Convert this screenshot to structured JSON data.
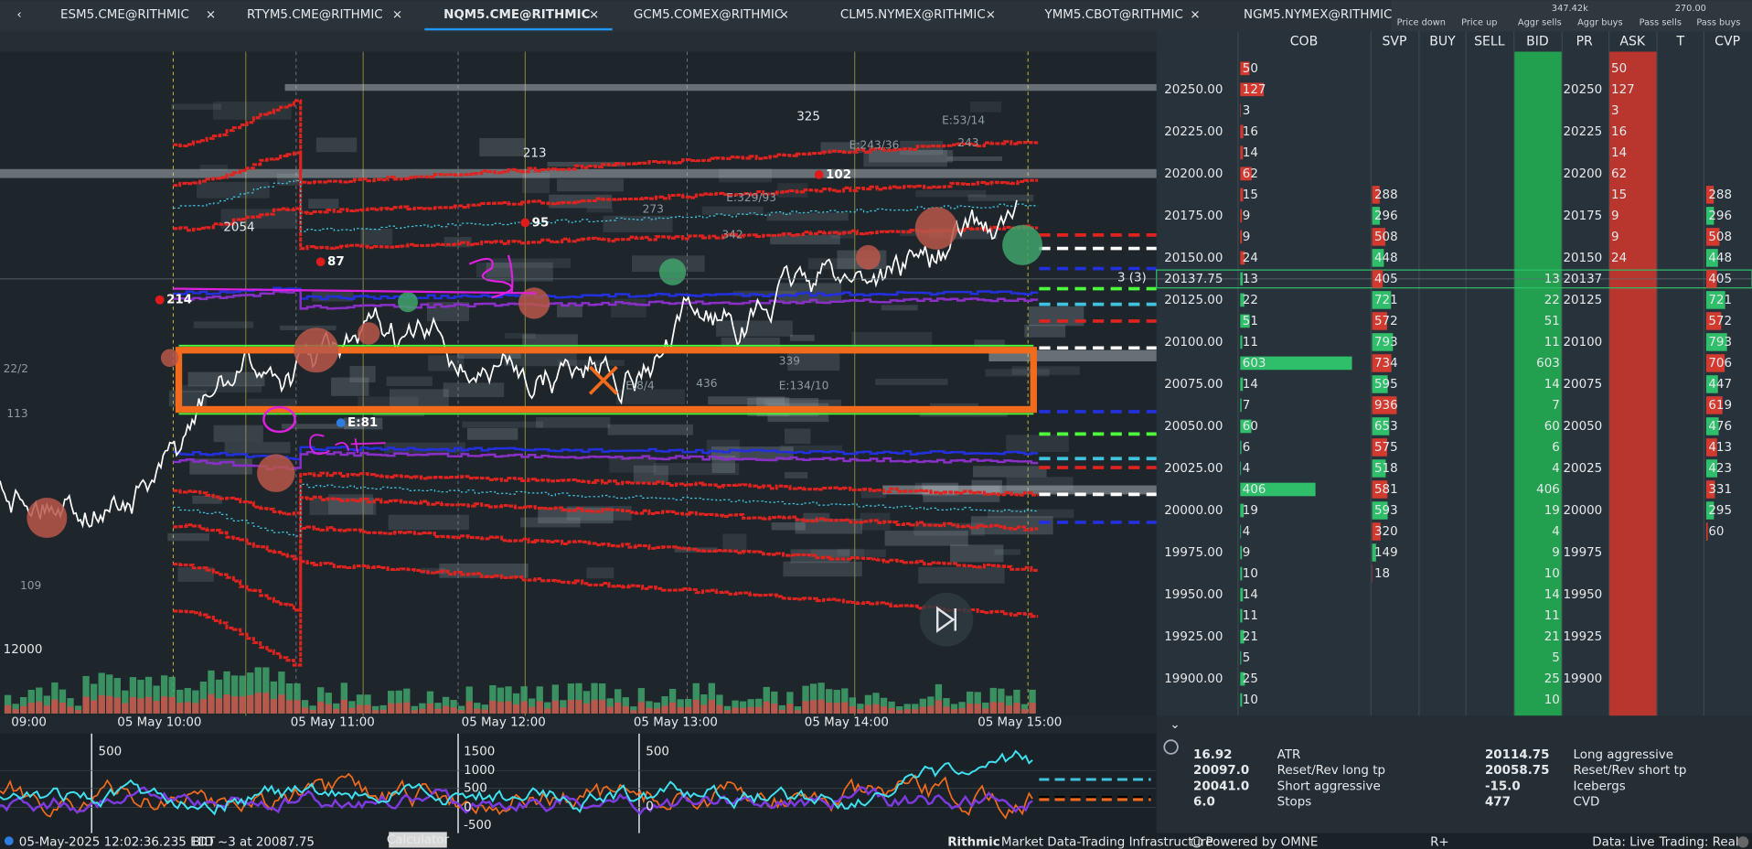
{
  "tabs": {
    "items": [
      "ESM5.CME@RITHMIC",
      "RTYM5.CME@RITHMIC",
      "NQM5.CME@RITHMIC",
      "GCM5.COMEX@RITHMIC",
      "CLM5.NYMEX@RITHMIC",
      "YMM5.CBOT@RITHMIC",
      "NGM5.NYMEX@RITHMIC"
    ],
    "active": 2
  },
  "toolbar": {
    "price_down": "Price down",
    "price_up": "Price up",
    "aggr_value": "347.42k",
    "aggr_sells": "Aggr sells",
    "aggr_buys": "Aggr buys",
    "pass_value": "270.00",
    "pass_sells": "Pass sells",
    "pass_buys": "Pass buys"
  },
  "ladder": {
    "columns": [
      "COB",
      "SVP",
      "BUY",
      "SELL",
      "BID",
      "PR",
      "ASK",
      "T",
      "CVP"
    ],
    "current_row": 10,
    "rows": [
      {
        "price": null,
        "pr": null,
        "cob": 50,
        "bid": null,
        "ask": 50,
        "svp": null,
        "cvp": null
      },
      {
        "price": "20250.00",
        "pr": "20250",
        "cob": 127,
        "bid": null,
        "ask": 127,
        "svp": null,
        "cvp": null
      },
      {
        "price": null,
        "pr": null,
        "cob": 3,
        "bid": null,
        "ask": 3,
        "svp": null,
        "cvp": null
      },
      {
        "price": "20225.00",
        "pr": "20225",
        "cob": 16,
        "bid": null,
        "ask": 16,
        "svp": null,
        "cvp": null
      },
      {
        "price": null,
        "pr": null,
        "cob": 14,
        "bid": null,
        "ask": 14,
        "svp": null,
        "cvp": null
      },
      {
        "price": "20200.00",
        "pr": "20200",
        "cob": 62,
        "bid": null,
        "ask": 62,
        "svp": null,
        "cvp": null
      },
      {
        "price": null,
        "pr": null,
        "cob": 15,
        "bid": null,
        "ask": 15,
        "svp": 288,
        "cvp": 288
      },
      {
        "price": "20175.00",
        "pr": "20175",
        "cob": 9,
        "bid": null,
        "ask": 9,
        "svp": 296,
        "cvp": 296
      },
      {
        "price": null,
        "pr": null,
        "cob": 9,
        "bid": null,
        "ask": 9,
        "svp": 508,
        "cvp": 508
      },
      {
        "price": "20150.00",
        "pr": "20150",
        "cob": 24,
        "bid": null,
        "ask": 24,
        "svp": 448,
        "cvp": 448
      },
      {
        "price": "20137.75",
        "pr": "20137",
        "cob": 13,
        "bid": 13,
        "ask": null,
        "svp": 405,
        "cvp": 405
      },
      {
        "price": "20125.00",
        "pr": "20125",
        "cob": 22,
        "bid": 22,
        "ask": null,
        "svp": 721,
        "cvp": 721
      },
      {
        "price": null,
        "pr": null,
        "cob": 51,
        "bid": 51,
        "ask": null,
        "svp": 572,
        "cvp": 572
      },
      {
        "price": "20100.00",
        "pr": "20100",
        "cob": 11,
        "bid": 11,
        "ask": null,
        "svp": 793,
        "cvp": 793
      },
      {
        "price": null,
        "pr": null,
        "cob": 603,
        "bid": 603,
        "ask": null,
        "svp": 734,
        "cvp": 706
      },
      {
        "price": "20075.00",
        "pr": "20075",
        "cob": 14,
        "bid": 14,
        "ask": null,
        "svp": 595,
        "cvp": 447
      },
      {
        "price": null,
        "pr": null,
        "cob": 7,
        "bid": 7,
        "ask": null,
        "svp": 936,
        "cvp": 619
      },
      {
        "price": "20050.00",
        "pr": "20050",
        "cob": 60,
        "bid": 60,
        "ask": null,
        "svp": 653,
        "cvp": 476
      },
      {
        "price": null,
        "pr": null,
        "cob": 6,
        "bid": 6,
        "ask": null,
        "svp": 575,
        "cvp": 413
      },
      {
        "price": "20025.00",
        "pr": "20025",
        "cob": 4,
        "bid": 4,
        "ask": null,
        "svp": 518,
        "cvp": 423
      },
      {
        "price": null,
        "pr": null,
        "cob": 406,
        "bid": 406,
        "ask": null,
        "svp": 581,
        "cvp": 331
      },
      {
        "price": "20000.00",
        "pr": "20000",
        "cob": 19,
        "bid": 19,
        "ask": null,
        "svp": 593,
        "cvp": 295
      },
      {
        "price": null,
        "pr": null,
        "cob": 4,
        "bid": 4,
        "ask": null,
        "svp": 320,
        "cvp": 60
      },
      {
        "price": "19975.00",
        "pr": "19975",
        "cob": 9,
        "bid": 9,
        "ask": null,
        "svp": 149,
        "cvp": null
      },
      {
        "price": null,
        "pr": null,
        "cob": 10,
        "bid": 10,
        "ask": null,
        "svp": 18,
        "cvp": null
      },
      {
        "price": "19950.00",
        "pr": "19950",
        "cob": 14,
        "bid": 14,
        "ask": null,
        "svp": null,
        "cvp": null
      },
      {
        "price": null,
        "pr": null,
        "cob": 11,
        "bid": 11,
        "ask": null,
        "svp": null,
        "cvp": null
      },
      {
        "price": "19925.00",
        "pr": "19925",
        "cob": 21,
        "bid": 21,
        "ask": null,
        "svp": null,
        "cvp": null
      },
      {
        "price": null,
        "pr": null,
        "cob": 5,
        "bid": 5,
        "ask": null,
        "svp": null,
        "cvp": null
      },
      {
        "price": "19900.00",
        "pr": "19900",
        "cob": 25,
        "bid": 25,
        "ask": null,
        "svp": null,
        "cvp": null
      },
      {
        "price": null,
        "pr": null,
        "cob": 10,
        "bid": 10,
        "ask": null,
        "svp": null,
        "cvp": null
      }
    ]
  },
  "chart": {
    "time_labels": [
      "09:00",
      "05 May 10:00",
      "05 May 11:00",
      "05 May 12:00",
      "05 May 13:00",
      "05 May 14:00",
      "05 May 15:00"
    ],
    "annotations": [
      "214",
      "87",
      "95",
      "102",
      "E:81",
      "325",
      "213",
      "2054",
      "12000",
      "109",
      "3 (3)",
      "E:8/4",
      "339",
      "436",
      "E:134/10",
      "E:53/14",
      "243",
      "E:243/36",
      "E:329/93",
      "342",
      "273",
      "22/2",
      "113"
    ]
  },
  "indicator": {
    "labels": [
      "500",
      "1500",
      "1000",
      "500",
      "0",
      "-500",
      "500",
      "0"
    ]
  },
  "info": {
    "left_values": [
      "16.92",
      "20097.0",
      "20041.0",
      "6.0"
    ],
    "left_names": [
      "ATR",
      "Reset/Rev long tp",
      "Short aggressive",
      "Stops"
    ],
    "right_values": [
      "20114.75",
      "20058.75",
      "-15.0",
      "477"
    ],
    "right_names": [
      "Long aggressive",
      "Reset/Rev short tp",
      "Icebergs",
      "CVD"
    ]
  },
  "status": {
    "time": "05-May-2025 12:02:36.235 EDT",
    "message": "BID ~3 at 20087.75",
    "calculator": "Calculator",
    "brand": "Rithmic",
    "tagline": "Market Data-Trading Infrastructure",
    "powered": "Powered by OMNE",
    "rplus": "R+",
    "data": "Data: Live",
    "trading": "Trading: Real"
  }
}
